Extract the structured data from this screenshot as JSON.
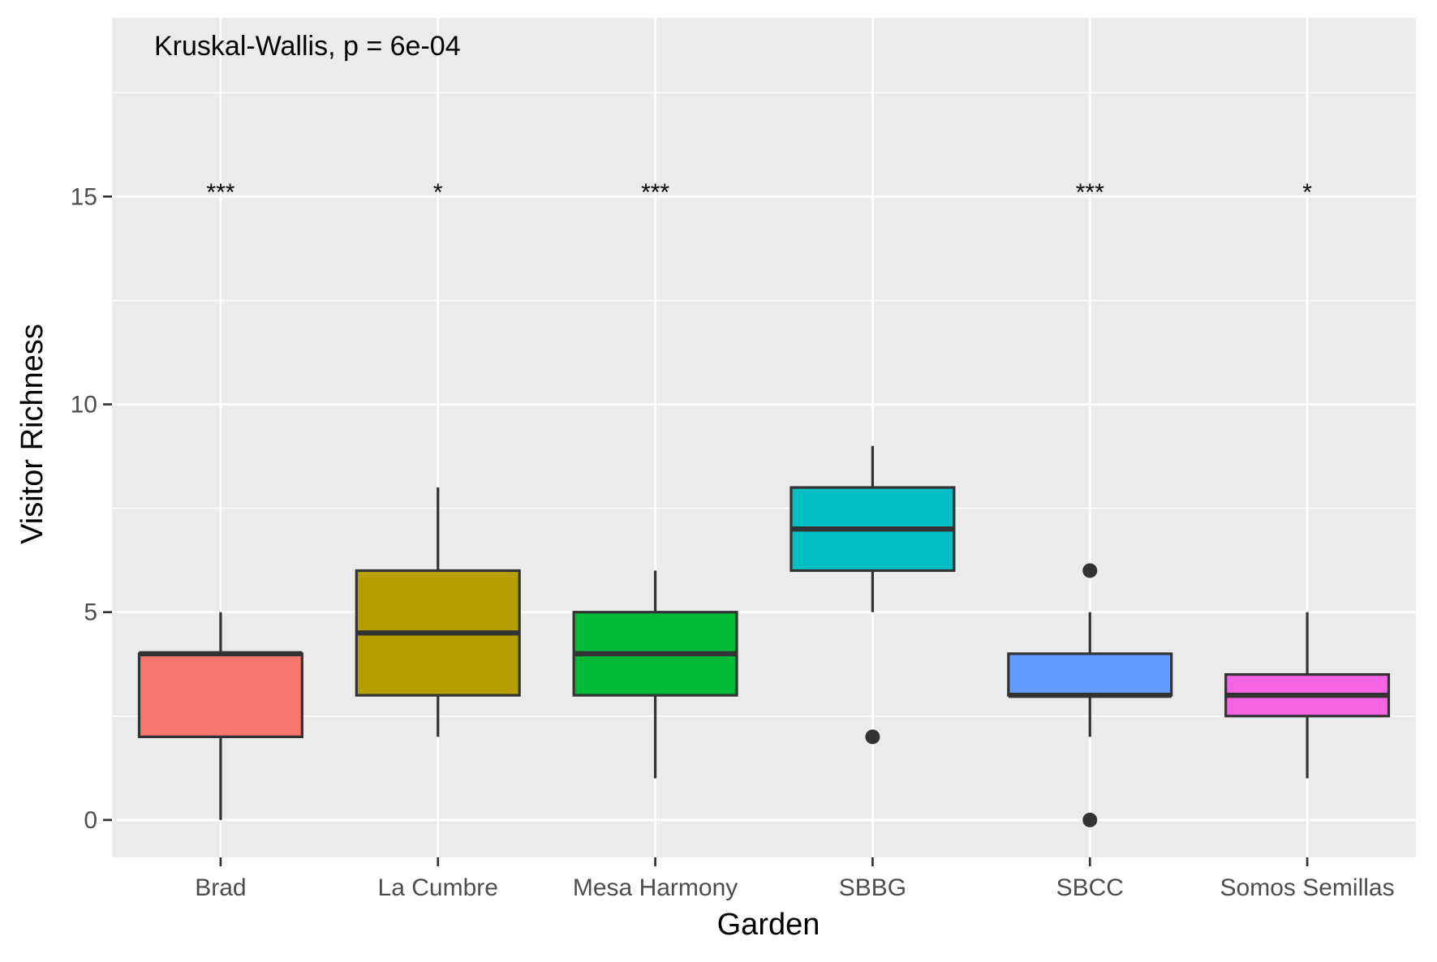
{
  "chart_data": {
    "type": "box",
    "title": "",
    "xlabel": "Garden",
    "ylabel": "Visitor Richness",
    "ylim": [
      -0.9,
      19.3
    ],
    "yticks": [
      0,
      5,
      10,
      15
    ],
    "ytick_labels": [
      "0",
      "5",
      "10",
      "15"
    ],
    "y_minor_ticks": [
      2.5,
      7.5,
      12.5,
      17.5
    ],
    "grid": true,
    "legend": "none",
    "annotation": "Kruskal-Wallis, p = 6e-04",
    "categories": [
      "Brad",
      "La Cumbre",
      "Mesa Harmony",
      "SBBG",
      "SBCC",
      "Somos Semillas"
    ],
    "boxes": [
      {
        "category": "Brad",
        "whisker_low": 0,
        "q1": 2,
        "median": 4,
        "q3": 4,
        "whisker_high": 5,
        "outliers": [],
        "color": "#F8766D",
        "significance": "***"
      },
      {
        "category": "La Cumbre",
        "whisker_low": 2,
        "q1": 3,
        "median": 4.5,
        "q3": 6,
        "whisker_high": 8,
        "outliers": [],
        "color": "#B79F00",
        "significance": "*"
      },
      {
        "category": "Mesa Harmony",
        "whisker_low": 1,
        "q1": 3,
        "median": 4,
        "q3": 5,
        "whisker_high": 6,
        "outliers": [],
        "color": "#00BA38",
        "significance": "***"
      },
      {
        "category": "SBBG",
        "whisker_low": 5,
        "q1": 6,
        "median": 7,
        "q3": 8,
        "whisker_high": 9,
        "outliers": [
          2
        ],
        "color": "#00BFC4",
        "significance": ""
      },
      {
        "category": "SBCC",
        "whisker_low": 2,
        "q1": 3,
        "median": 3,
        "q3": 4,
        "whisker_high": 5,
        "outliers": [
          6,
          0
        ],
        "color": "#619CFF",
        "significance": "***"
      },
      {
        "category": "Somos Semillas",
        "whisker_low": 1,
        "q1": 2.5,
        "median": 3,
        "q3": 3.5,
        "whisker_high": 5,
        "outliers": [],
        "color": "#F564E3",
        "significance": "*"
      }
    ],
    "significance_y": 15.3
  }
}
